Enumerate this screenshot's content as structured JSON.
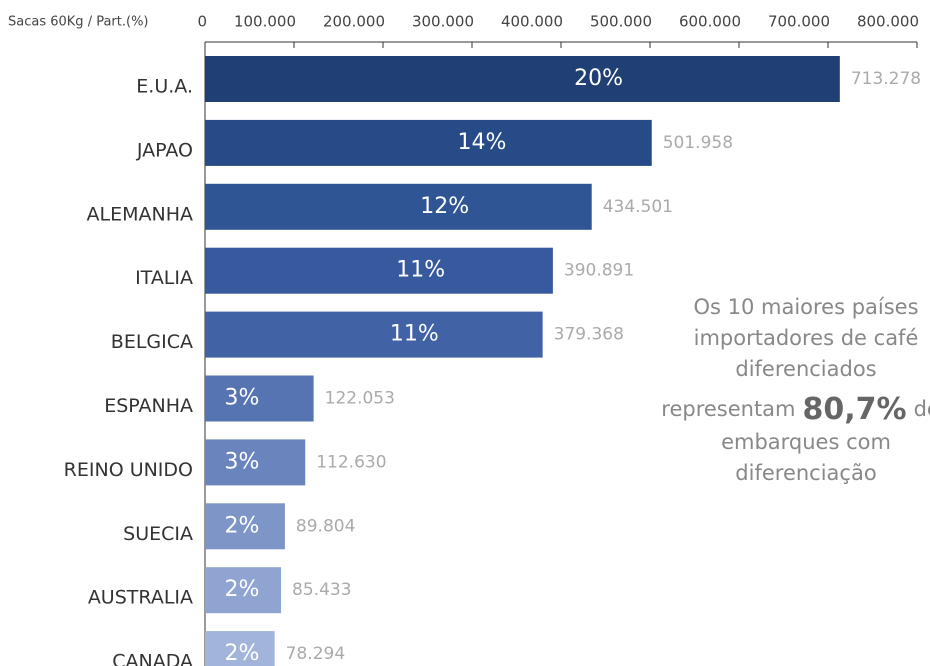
{
  "chart_data": {
    "type": "hbar",
    "axis_label": "Sacas 60Kg / Part.(%)",
    "categories": [
      "E.U.A.",
      "JAPAO",
      "ALEMANHA",
      "ITALIA",
      "BELGICA",
      "ESPANHA",
      "REINO UNIDO",
      "SUECIA",
      "AUSTRALIA",
      "CANADA"
    ],
    "values": [
      713278,
      501958,
      434501,
      390891,
      379368,
      122053,
      112630,
      89804,
      85433,
      78294
    ],
    "value_labels": [
      "713.278",
      "501.958",
      "434.501",
      "390.891",
      "379.368",
      "122.053",
      "112.630",
      "89.804",
      "85.433",
      "78.294"
    ],
    "shares": [
      20,
      14,
      12,
      11,
      11,
      3,
      3,
      2,
      2,
      2
    ],
    "share_labels": [
      "20%",
      "14%",
      "12%",
      "11%",
      "11%",
      "3%",
      "3%",
      "2%",
      "2%",
      "2%"
    ],
    "colors": [
      "#203f75",
      "#274b87",
      "#2f5594",
      "#37599e",
      "#4262a6",
      "#5674b2",
      "#6a85bd",
      "#7d95c7",
      "#8fa4d0",
      "#a2b4da"
    ],
    "xlim": [
      0,
      800000
    ],
    "xticks": [
      0,
      {
        "value": 100000,
        "label": "100.000"
      },
      {
        "value": 200000,
        "label": "200.000"
      },
      {
        "value": 300000,
        "label": "300.000"
      },
      {
        "value": 400000,
        "label": "400.000"
      },
      {
        "value": 500000,
        "label": "500.000"
      },
      {
        "value": 600000,
        "label": "600.000"
      },
      {
        "value": 700000,
        "label": "700.000"
      },
      {
        "value": 800000,
        "label": "800.000"
      }
    ],
    "annotation": {
      "lines_top": [
        "Os 10 maiores países",
        "importadores de café",
        "diferenciados"
      ],
      "highlight_prefix": "representam",
      "highlight": "80,7%",
      "highlight_suffix": "dos",
      "lines_bottom": [
        "embarques com",
        "diferenciação"
      ]
    }
  }
}
